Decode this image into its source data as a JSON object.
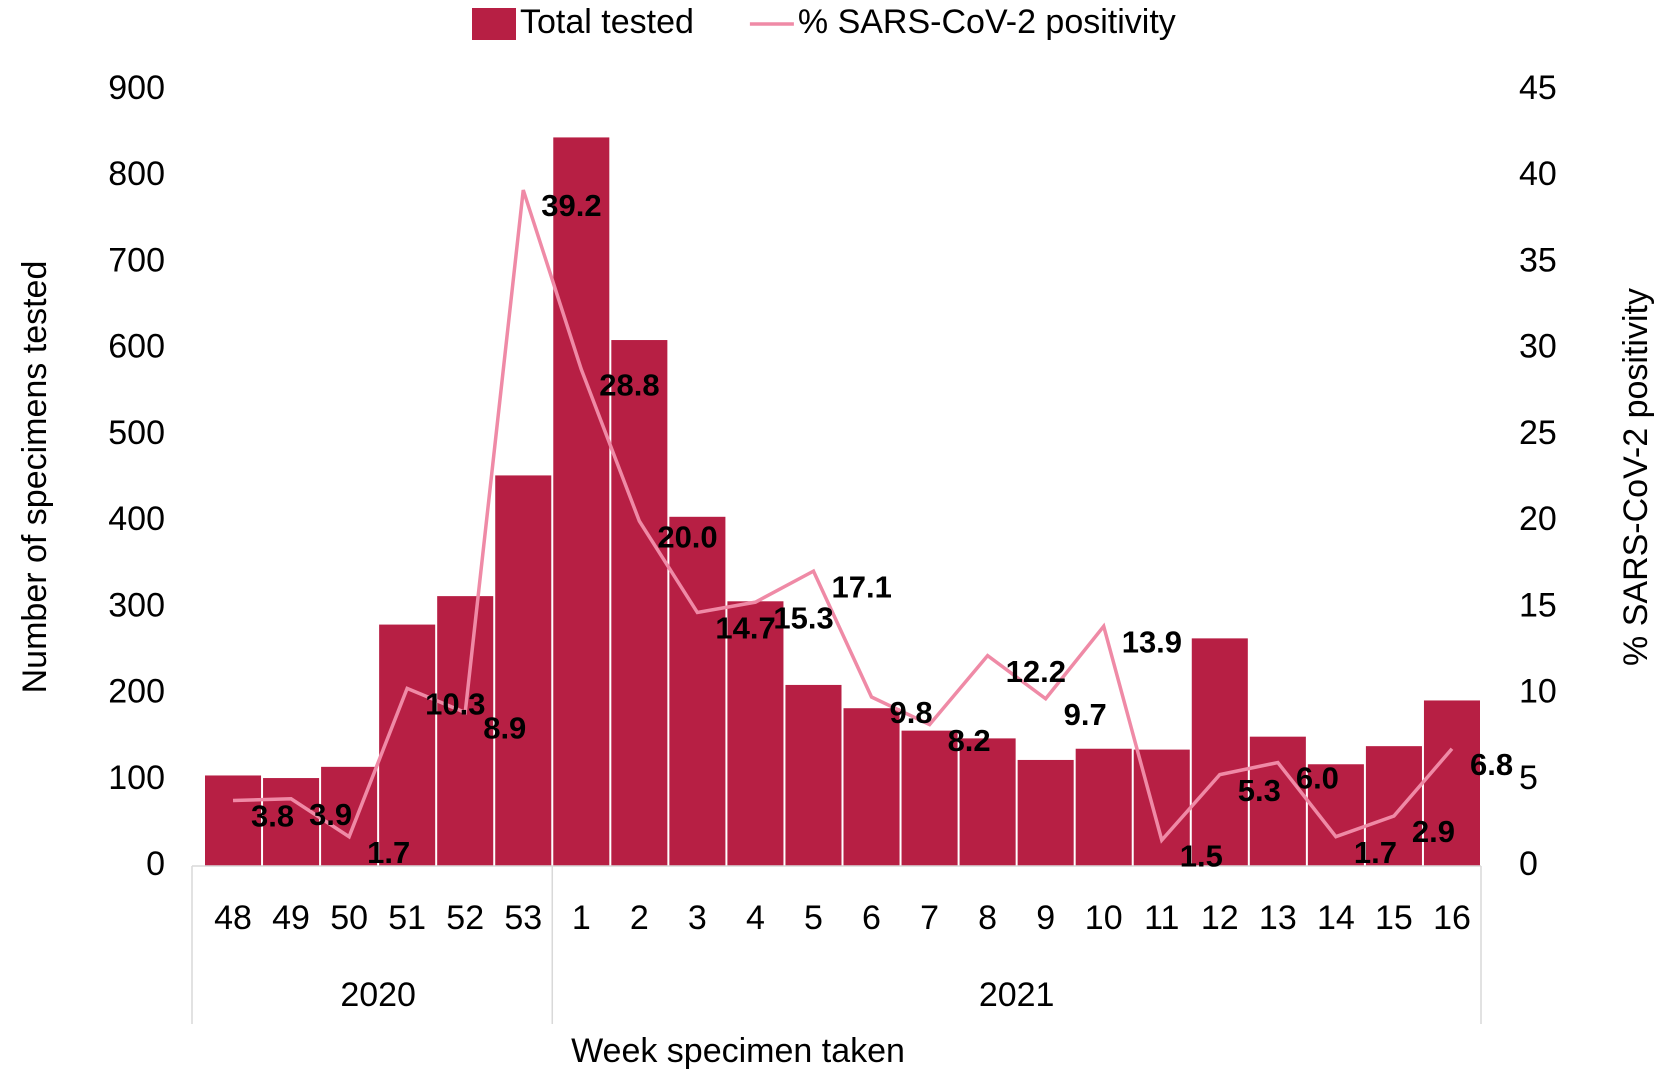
{
  "chart_data": {
    "type": "bar_line",
    "x_title": "Week specimen taken",
    "y_title": "Number of specimens tested",
    "y2_title": "% SARS-CoV-2 positivity",
    "categories": [
      "48",
      "49",
      "50",
      "51",
      "52",
      "53",
      "1",
      "2",
      "3",
      "4",
      "5",
      "6",
      "7",
      "8",
      "9",
      "10",
      "11",
      "12",
      "13",
      "14",
      "15",
      "16"
    ],
    "x_group": [
      "2020",
      "2020",
      "2020",
      "2020",
      "2020",
      "2020",
      "2021",
      "2021",
      "2021",
      "2021",
      "2021",
      "2021",
      "2021",
      "2021",
      "2021",
      "2021",
      "2021",
      "2021",
      "2021",
      "2021",
      "2021",
      "2021"
    ],
    "series": [
      {
        "name": "Total tested",
        "type": "bar",
        "color": "#b71f44",
        "values": [
          105,
          102,
          115,
          280,
          313,
          453,
          845,
          610,
          405,
          307,
          210,
          183,
          157,
          148,
          123,
          136,
          135,
          264,
          150,
          118,
          139,
          192
        ]
      },
      {
        "name": "% SARS-CoV-2 positivity",
        "type": "line",
        "axis": "y2",
        "color": "#ef8aa6",
        "values": [
          3.8,
          3.9,
          1.7,
          10.3,
          8.9,
          39.2,
          28.8,
          20.0,
          14.7,
          15.3,
          17.1,
          9.8,
          8.2,
          12.2,
          9.7,
          13.9,
          1.5,
          5.3,
          6.0,
          1.7,
          2.9,
          6.8
        ],
        "value_labels": [
          "3.8",
          "3.9",
          "1.7",
          "10.3",
          "8.9",
          "39.2",
          "28.8",
          "20.0",
          "14.7",
          "15.3",
          "17.1",
          "9.8",
          "8.2",
          "12.2",
          "9.7",
          "13.9",
          "1.5",
          "5.3",
          "6.0",
          "1.7",
          "2.9",
          "6.8"
        ]
      }
    ],
    "ylim": [
      0,
      900
    ],
    "yticks": [
      0,
      100,
      200,
      300,
      400,
      500,
      600,
      700,
      800,
      900
    ],
    "y2lim": [
      0,
      45
    ],
    "y2ticks": [
      0,
      5,
      10,
      15,
      20,
      25,
      30,
      35,
      40,
      45
    ],
    "legend": "top",
    "grid": false
  }
}
